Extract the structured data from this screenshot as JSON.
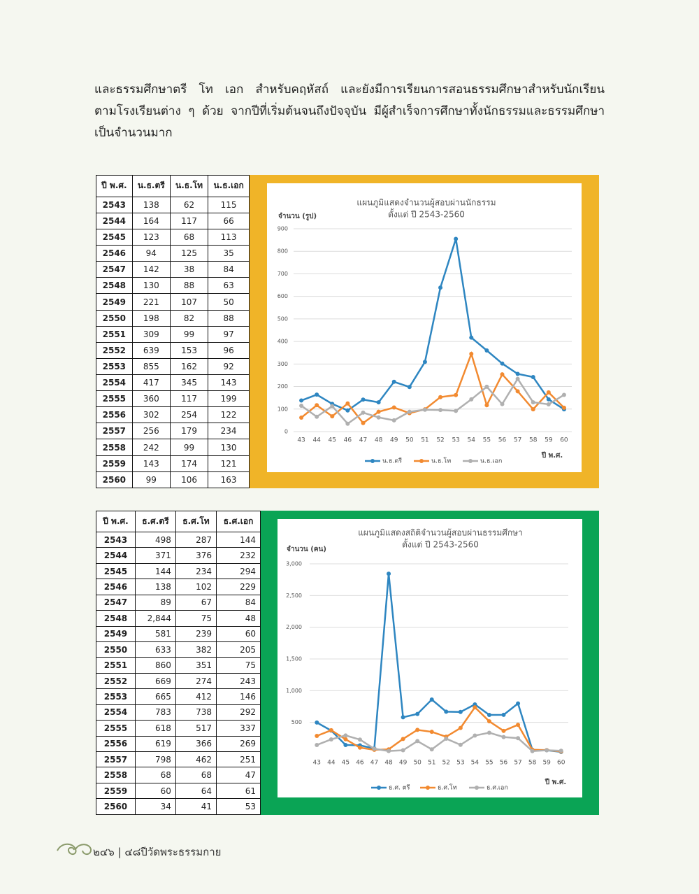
{
  "paragraph": [
    "และธรรมศึกษาตรี โท เอก สำหรับคฤหัสถ์ และยังมีการเรียนการสอนธรรมศึกษาสำหรับนักเรียน",
    "ตามโรงเรียนต่าง ๆ ด้วย จากปีที่เริ่มต้นจนถึงปัจจุบัน มีผู้สำเร็จการศึกษาทั้งนักธรรมและธรรมศึกษา",
    "เป็นจำนวนมาก"
  ],
  "table1": {
    "header": [
      "ปี พ.ศ.",
      "น.ธ.ตรี",
      "น.ธ.โท",
      "น.ธ.เอก"
    ],
    "rows": [
      [
        "2543",
        "138",
        "62",
        "115"
      ],
      [
        "2544",
        "164",
        "117",
        "66"
      ],
      [
        "2545",
        "123",
        "68",
        "113"
      ],
      [
        "2546",
        "94",
        "125",
        "35"
      ],
      [
        "2547",
        "142",
        "38",
        "84"
      ],
      [
        "2548",
        "130",
        "88",
        "63"
      ],
      [
        "2549",
        "221",
        "107",
        "50"
      ],
      [
        "2550",
        "198",
        "82",
        "88"
      ],
      [
        "2551",
        "309",
        "99",
        "97"
      ],
      [
        "2552",
        "639",
        "153",
        "96"
      ],
      [
        "2553",
        "855",
        "162",
        "92"
      ],
      [
        "2554",
        "417",
        "345",
        "143"
      ],
      [
        "2555",
        "360",
        "117",
        "199"
      ],
      [
        "2556",
        "302",
        "254",
        "122"
      ],
      [
        "2557",
        "256",
        "179",
        "234"
      ],
      [
        "2558",
        "242",
        "99",
        "130"
      ],
      [
        "2559",
        "143",
        "174",
        "121"
      ],
      [
        "2560",
        "99",
        "106",
        "163"
      ]
    ]
  },
  "table2": {
    "header": [
      "ปี พ.ศ.",
      "ธ.ศ.ตรี",
      "ธ.ศ.โท",
      "ธ.ศ.เอก"
    ],
    "rows": [
      [
        "2543",
        "498",
        "287",
        "144"
      ],
      [
        "2544",
        "371",
        "376",
        "232"
      ],
      [
        "2545",
        "144",
        "234",
        "294"
      ],
      [
        "2546",
        "138",
        "102",
        "229"
      ],
      [
        "2547",
        "89",
        "67",
        "84"
      ],
      [
        "2548",
        "2,844",
        "75",
        "48"
      ],
      [
        "2549",
        "581",
        "239",
        "60"
      ],
      [
        "2550",
        "633",
        "382",
        "205"
      ],
      [
        "2551",
        "860",
        "351",
        "75"
      ],
      [
        "2552",
        "669",
        "274",
        "243"
      ],
      [
        "2553",
        "665",
        "412",
        "146"
      ],
      [
        "2554",
        "783",
        "738",
        "292"
      ],
      [
        "2555",
        "618",
        "517",
        "337"
      ],
      [
        "2556",
        "619",
        "366",
        "269"
      ],
      [
        "2557",
        "798",
        "462",
        "251"
      ],
      [
        "2558",
        "68",
        "68",
        "47"
      ],
      [
        "2559",
        "60",
        "64",
        "61"
      ],
      [
        "2560",
        "34",
        "41",
        "53"
      ]
    ]
  },
  "chart_data": [
    {
      "type": "line",
      "title": "แผนภูมิแสดงจำนวนผู้สอบผ่านนักธรรม",
      "subtitle": "ตั้งแต่ ปี 2543-2560",
      "y_label": "จำนวน (รูป)",
      "x_label": "ปี พ.ศ.",
      "categories": [
        "43",
        "44",
        "45",
        "46",
        "47",
        "48",
        "49",
        "50",
        "51",
        "52",
        "53",
        "54",
        "55",
        "56",
        "57",
        "58",
        "59",
        "60"
      ],
      "series": [
        {
          "name": "น.ธ.ตรี",
          "color": "#2e86c1",
          "values": [
            138,
            164,
            123,
            94,
            142,
            130,
            221,
            198,
            309,
            639,
            855,
            417,
            360,
            302,
            256,
            242,
            143,
            99
          ]
        },
        {
          "name": "น.ธ.โท",
          "color": "#f28a30",
          "values": [
            62,
            117,
            68,
            125,
            38,
            88,
            107,
            82,
            99,
            153,
            162,
            345,
            117,
            254,
            179,
            99,
            174,
            106
          ]
        },
        {
          "name": "น.ธ.เอก",
          "color": "#b0b0b0",
          "values": [
            115,
            66,
            113,
            35,
            84,
            63,
            50,
            88,
            97,
            96,
            92,
            143,
            199,
            122,
            234,
            130,
            121,
            163
          ]
        }
      ],
      "ylim": [
        0,
        900
      ],
      "yticks": [
        0,
        100,
        200,
        300,
        400,
        500,
        600,
        700,
        800,
        900
      ],
      "grid": true,
      "legend": "bottom",
      "frame_color": "#f0b428"
    },
    {
      "type": "line",
      "title": "แผนภูมิแสดงสถิติจำนวนผู้สอบผ่านธรรมศึกษา",
      "subtitle": "ตั้งแต่ ปี 2543-2560",
      "y_label": "จำนวน (คน)",
      "x_label": "ปี พ.ศ.",
      "categories": [
        "43",
        "44",
        "45",
        "46",
        "47",
        "48",
        "49",
        "50",
        "51",
        "52",
        "53",
        "54",
        "55",
        "56",
        "57",
        "58",
        "59",
        "60"
      ],
      "series": [
        {
          "name": "ธ.ศ. ตรี",
          "color": "#2e86c1",
          "values": [
            498,
            371,
            144,
            138,
            89,
            2844,
            581,
            633,
            860,
            669,
            665,
            783,
            618,
            619,
            798,
            68,
            60,
            34
          ]
        },
        {
          "name": "ธ.ศ.โท",
          "color": "#f28a30",
          "values": [
            287,
            376,
            234,
            102,
            67,
            75,
            239,
            382,
            351,
            274,
            412,
            738,
            517,
            366,
            462,
            68,
            64,
            41
          ]
        },
        {
          "name": "ธ.ศ.เอก",
          "color": "#b0b0b0",
          "values": [
            144,
            232,
            294,
            229,
            84,
            48,
            60,
            205,
            75,
            243,
            146,
            292,
            337,
            269,
            251,
            47,
            61,
            53
          ]
        }
      ],
      "ylim": [
        0,
        3000
      ],
      "yticks": [
        500,
        {
          "value": 1000,
          "label": "1,000"
        },
        {
          "value": 1500,
          "label": "1,500"
        },
        {
          "value": 2000,
          "label": "2,000"
        },
        {
          "value": 2500,
          "label": "2,500"
        },
        {
          "value": 3000,
          "label": "3,000"
        }
      ],
      "grid": true,
      "legend": "bottom",
      "frame_color": "#0aa455"
    }
  ],
  "footer": "๒๔๖ | ๔๘ปีวัดพระธรรมกาย"
}
